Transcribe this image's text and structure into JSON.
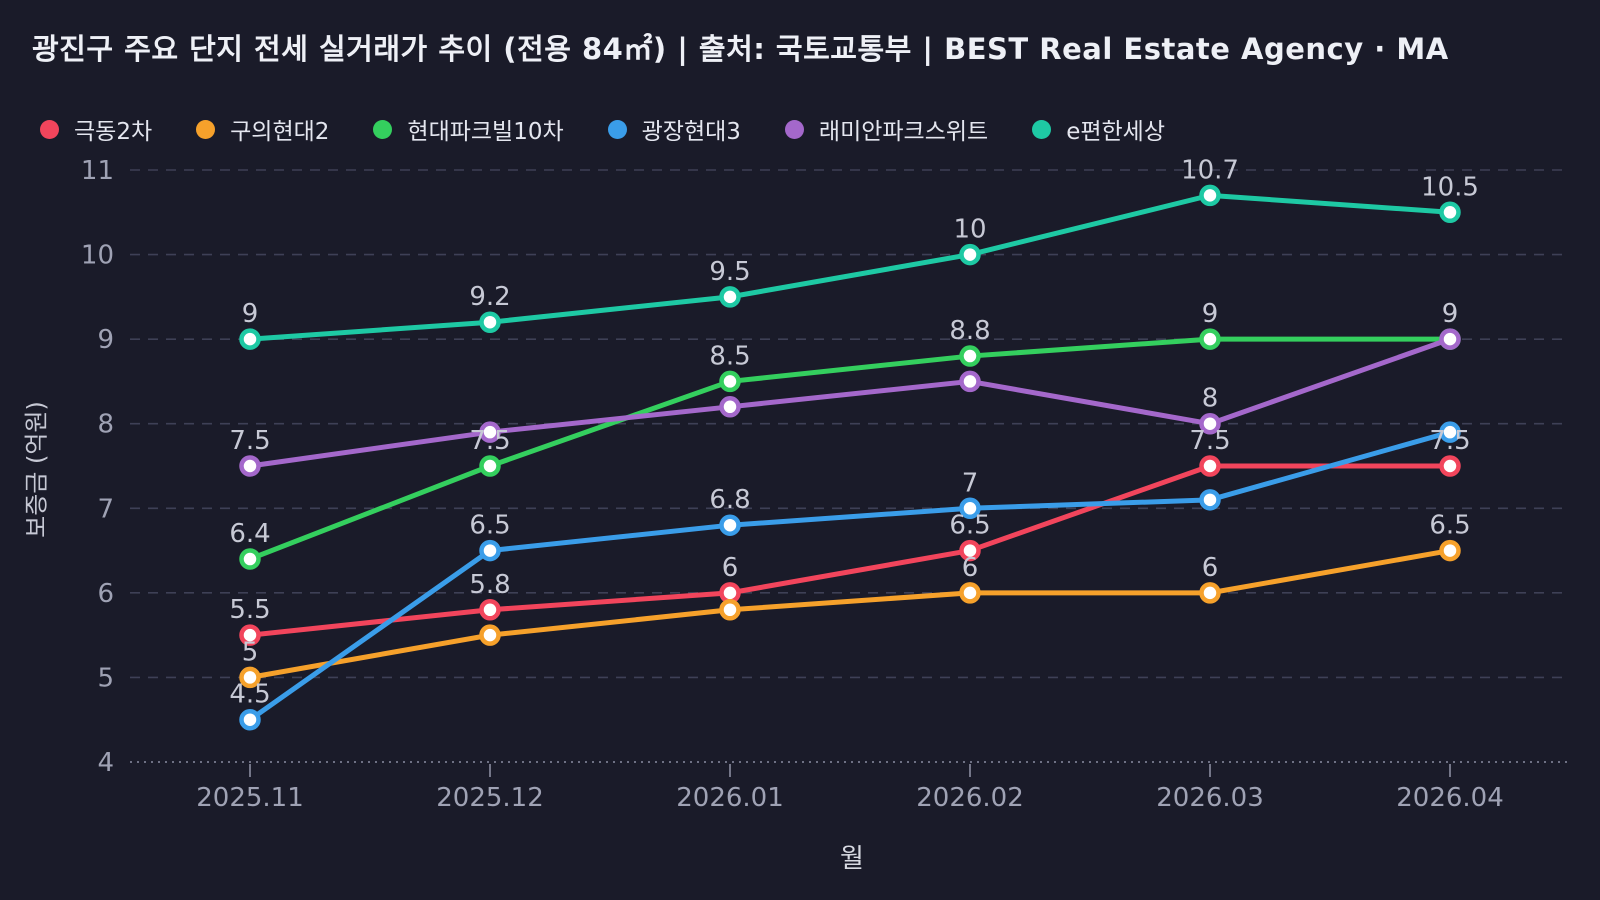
{
  "header": {
    "title": "광진구 주요 단지 전세 실거래가 추이 (전용 84㎡) | 출처: 국토교통부 | BEST Real Estate Agency · MA"
  },
  "colors": {
    "background": "#1a1b29",
    "title_text": "#eef0f6",
    "legend_text": "#e4e6ef",
    "grid_line": "#3e4056",
    "baseline_dotted": "#6e7184",
    "tick_mark": "#8b8ea0",
    "axis_tick_text": "#9fa2b4",
    "data_label_text": "#c7c9d5",
    "marker_fill": "#ffffff"
  },
  "chart_data": {
    "type": "line",
    "title": "광진구 주요 단지 전세 실거래가 추이 (전용 84㎡) | 출처: 국토교통부 | BEST Real Estate Agency · MA",
    "xlabel": "월",
    "ylabel": "보증금 (억원)",
    "categories": [
      "2025.11",
      "2025.12",
      "2026.01",
      "2026.02",
      "2026.03",
      "2026.04"
    ],
    "ylim": [
      4,
      11
    ],
    "yticks": [
      4,
      5,
      6,
      7,
      8,
      9,
      10,
      11
    ],
    "grid": true,
    "grid_style": "dashed",
    "legend_position": "top-left",
    "series": [
      {
        "name": "극동2차",
        "color": "#f2455c",
        "values": [
          5.5,
          5.8,
          6,
          6.5,
          7.5,
          7.5
        ],
        "visible_labels": [
          "5.5",
          "5.8",
          "6",
          "6.5",
          "7.5",
          "7.5"
        ]
      },
      {
        "name": "구의현대2",
        "color": "#f6a12b",
        "values": [
          5,
          5.5,
          5.8,
          6,
          6,
          6.5
        ],
        "visible_labels": [
          "5",
          "",
          "",
          "6",
          "6",
          "6.5"
        ]
      },
      {
        "name": "현대파크빌10차",
        "color": "#34cf5e",
        "values": [
          6.4,
          7.5,
          8.5,
          8.8,
          9,
          9
        ],
        "visible_labels": [
          "6.4",
          "7.5",
          "8.5",
          "8.8",
          "9",
          "9"
        ]
      },
      {
        "name": "광장현대3",
        "color": "#3a9de9",
        "values": [
          4.5,
          6.5,
          6.8,
          7,
          7.1,
          7.9
        ],
        "visible_labels": [
          "4.5",
          "6.5",
          "6.8",
          "7",
          "",
          ""
        ]
      },
      {
        "name": "래미안파크스위트",
        "color": "#a468cb",
        "values": [
          7.5,
          7.9,
          8.2,
          8.5,
          8,
          9
        ],
        "visible_labels": [
          "7.5",
          "",
          "",
          "",
          "8",
          ""
        ]
      },
      {
        "name": "e편한세상",
        "color": "#1ec9a4",
        "values": [
          9,
          9.2,
          9.5,
          10,
          10.7,
          10.5
        ],
        "visible_labels": [
          "9",
          "9.2",
          "9.5",
          "10",
          "10.7",
          "10.5"
        ]
      }
    ]
  }
}
